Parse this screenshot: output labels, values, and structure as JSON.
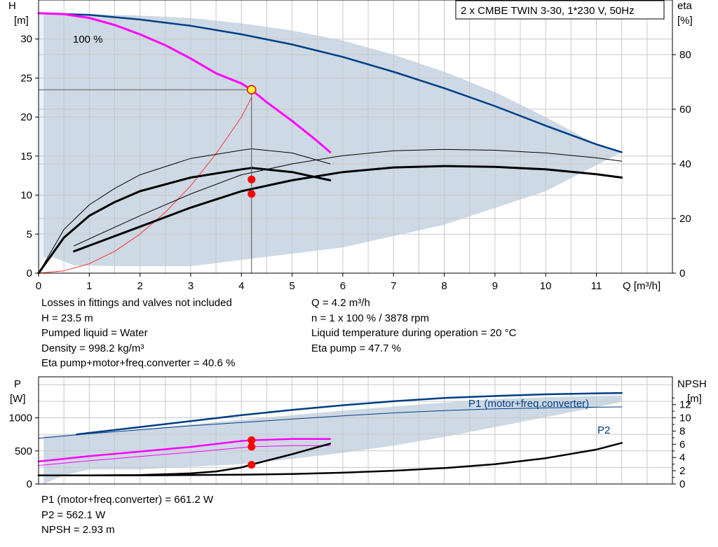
{
  "title": "2 x CMBE TWIN 3-30, 1*230 V, 50Hz",
  "chart_data": [
    {
      "type": "line",
      "name": "head-eta",
      "y_label": "H",
      "y_unit": "[m]",
      "y2_label": "eta",
      "y2_unit": "[%]",
      "x_label": "Q [m³/h]",
      "xlim": [
        0,
        12.5
      ],
      "ylim": [
        0,
        35
      ],
      "y2lim": [
        0,
        100
      ],
      "x_ticks": [
        "0",
        "1",
        "2",
        "3",
        "4",
        "5",
        "6",
        "7",
        "8",
        "9",
        "10",
        "11"
      ],
      "y_ticks": [
        "0",
        "5",
        "10",
        "15",
        "20",
        "25",
        "30"
      ],
      "y2_ticks": [
        "0",
        "20",
        "40",
        "60",
        "80"
      ],
      "grid": true,
      "curve_label": "100 %",
      "duty_point": {
        "q": 4.2,
        "h": 23.5,
        "eta_pump": 47.7,
        "eta_total": 40.6
      },
      "operating_area": [
        [
          0.1,
          2
        ],
        [
          0.3,
          2
        ],
        [
          0.7,
          1
        ],
        [
          1.5,
          0.9
        ],
        [
          3,
          0.9
        ],
        [
          4,
          1.7
        ],
        [
          6,
          3.3
        ],
        [
          8,
          6.2
        ],
        [
          10,
          10.5
        ],
        [
          11.5,
          15.5
        ],
        [
          11,
          16.5
        ],
        [
          10,
          20
        ],
        [
          9,
          23.2
        ],
        [
          8,
          25.8
        ],
        [
          7,
          28
        ],
        [
          6,
          29.8
        ],
        [
          5,
          31.1
        ],
        [
          4,
          32
        ],
        [
          3,
          32.7
        ],
        [
          2,
          33
        ],
        [
          1,
          33.2
        ],
        [
          0.4,
          33.3
        ],
        [
          0.1,
          33.3
        ]
      ],
      "series": [
        {
          "name": "Max curve",
          "color": "#003d84",
          "x": [
            0,
            1,
            2,
            3,
            4,
            5,
            6,
            7,
            8,
            9,
            10,
            11,
            11.5
          ],
          "y": [
            33.3,
            33.1,
            32.5,
            31.7,
            30.6,
            29.3,
            27.7,
            25.8,
            23.7,
            21.4,
            18.9,
            16.5,
            15.5
          ]
        },
        {
          "name": "100 %",
          "color": "#ff00ff",
          "x": [
            0,
            0.5,
            1,
            1.5,
            2,
            2.5,
            3,
            3.5,
            4,
            4.2,
            4.5,
            5,
            5.5,
            5.75
          ],
          "y": [
            33.3,
            33.2,
            32.7,
            31.8,
            30.6,
            29.2,
            27.5,
            25.6,
            24.3,
            23.5,
            21.9,
            19.5,
            16.9,
            15.5
          ]
        },
        {
          "name": "System curve",
          "color": "#ff3030",
          "x": [
            0,
            0.5,
            1,
            1.5,
            2,
            2.5,
            3,
            3.5,
            4,
            4.2
          ],
          "y": [
            0,
            0.3,
            1.2,
            2.8,
            5,
            7.8,
            11.2,
            15.3,
            20,
            22.5
          ]
        },
        {
          "name": "Eta pump (bold)",
          "color": "#000000",
          "axis": "eta",
          "x": [
            0,
            0.5,
            1,
            1.5,
            2,
            3,
            4,
            4.2,
            5,
            5.75
          ],
          "y": [
            0,
            13,
            21,
            26,
            30,
            35,
            38,
            38.5,
            37,
            34
          ]
        },
        {
          "name": "Eta pump (thin)",
          "color": "#000000",
          "axis": "eta",
          "x": [
            0,
            0.5,
            1,
            1.5,
            2,
            3,
            4,
            4.2,
            5,
            5.75
          ],
          "y": [
            0,
            16,
            25,
            31,
            36,
            42,
            45,
            45.5,
            44,
            40
          ]
        },
        {
          "name": "Eta total (bold)",
          "color": "#000000",
          "axis": "eta",
          "x": [
            0.7,
            2,
            3,
            4,
            5,
            6,
            7,
            8,
            9,
            10,
            11,
            11.5
          ],
          "y": [
            8,
            17,
            24,
            30,
            34,
            37,
            38.7,
            39.2,
            38.9,
            38,
            36.2,
            35
          ]
        },
        {
          "name": "Eta total (thin)",
          "color": "#000000",
          "axis": "eta",
          "x": [
            0.7,
            2,
            3,
            4,
            5,
            6,
            7,
            8,
            9,
            10,
            11,
            11.5
          ],
          "y": [
            10,
            21,
            29,
            36,
            40,
            43,
            44.8,
            45.3,
            45,
            44,
            42.2,
            41
          ]
        }
      ],
      "markers": [
        {
          "x": 4.2,
          "y": 34.3,
          "axis": "eta"
        },
        {
          "x": 4.2,
          "y": 29.0,
          "axis": "eta"
        }
      ]
    },
    {
      "type": "line",
      "name": "power-npsh",
      "y_label": "P",
      "y_unit": "[W]",
      "y2_label": "NPSH",
      "y2_unit": "[m]",
      "xlim": [
        0,
        12.5
      ],
      "ylim": [
        0,
        1620
      ],
      "y2lim": [
        0,
        16.2
      ],
      "y_ticks": [
        "0",
        "500",
        "1000"
      ],
      "y2_ticks": [
        "0",
        "2",
        "4",
        "6",
        "8",
        "10",
        "12"
      ],
      "grid": true,
      "area": [
        [
          0.1,
          0
        ],
        [
          0.5,
          130
        ],
        [
          1,
          220
        ],
        [
          2,
          220
        ],
        [
          3,
          260
        ],
        [
          4,
          300
        ],
        [
          5,
          380
        ],
        [
          6,
          470
        ],
        [
          7,
          580
        ],
        [
          8,
          710
        ],
        [
          9,
          860
        ],
        [
          10,
          1010
        ],
        [
          11,
          1160
        ],
        [
          11.5,
          1240
        ],
        [
          11.5,
          1340
        ],
        [
          11,
          1330
        ],
        [
          10,
          1310
        ],
        [
          9,
          1280
        ],
        [
          8,
          1230
        ],
        [
          7,
          1170
        ],
        [
          6,
          1110
        ],
        [
          5,
          1040
        ],
        [
          4,
          970
        ],
        [
          3,
          900
        ],
        [
          2,
          830
        ],
        [
          1,
          760
        ],
        [
          0.5,
          740
        ],
        [
          0.1,
          730
        ]
      ],
      "series": [
        {
          "name": "P1 (motor+freq.converter)",
          "color": "#003d84",
          "x": [
            0.75,
            2,
            3,
            4,
            5,
            6,
            7,
            8,
            9,
            10,
            11,
            11.5
          ],
          "y": [
            750,
            860,
            950,
            1040,
            1120,
            1190,
            1250,
            1300,
            1330,
            1355,
            1370,
            1375
          ]
        },
        {
          "name": "P2",
          "color": "#003d84",
          "x": [
            0,
            1,
            2,
            3,
            4,
            5,
            6,
            7,
            8,
            9,
            10,
            11,
            11.5
          ],
          "y": [
            690,
            760,
            820,
            880,
            930,
            980,
            1030,
            1075,
            1110,
            1135,
            1150,
            1160,
            1165
          ]
        },
        {
          "name": "P1 100 %",
          "color": "#ff00ff",
          "x": [
            0,
            1,
            2,
            3,
            4,
            4.2,
            5,
            5.75
          ],
          "y": [
            340,
            420,
            490,
            560,
            650,
            661,
            680,
            680
          ]
        },
        {
          "name": "P2 100 %",
          "color": "#ff00ff",
          "x": [
            0,
            1,
            2,
            3,
            4,
            4.2,
            5,
            5.75
          ],
          "y": [
            280,
            350,
            415,
            480,
            550,
            562,
            580,
            580
          ]
        },
        {
          "name": "NPSH (short)",
          "color": "#000000",
          "axis": "npsh",
          "x": [
            0,
            1,
            2,
            3,
            3.5,
            4,
            4.2,
            5,
            5.75
          ],
          "y": [
            1.3,
            1.3,
            1.35,
            1.6,
            1.9,
            2.5,
            2.93,
            4.5,
            6.1
          ]
        },
        {
          "name": "NPSH (long)",
          "color": "#000000",
          "axis": "npsh",
          "x": [
            0,
            1,
            2,
            3,
            4,
            5,
            6,
            7,
            8,
            9,
            10,
            11,
            11.5
          ],
          "y": [
            1.3,
            1.3,
            1.3,
            1.35,
            1.4,
            1.5,
            1.7,
            2,
            2.4,
            3,
            3.9,
            5.2,
            6.2
          ]
        }
      ],
      "markers": [
        {
          "x": 4.2,
          "y": 661.2
        },
        {
          "x": 4.2,
          "y": 562.1
        },
        {
          "x": 4.2,
          "y": 290
        }
      ]
    }
  ],
  "info": {
    "left": [
      "Losses in fittings and valves not included",
      "H = 23.5 m",
      "Pumped liquid = Water",
      "Density = 998.2 kg/m³",
      "Eta pump+motor+freq.converter = 40.6 %"
    ],
    "right": [
      "Q = 4.2 m³/h",
      "n = 1 x 100 % / 3878 rpm",
      "Liquid temperature during operation = 20 °C",
      "Eta pump = 47.7 %"
    ],
    "bottom": [
      "P1 (motor+freq.converter) = 661.2 W",
      "P2 = 562.1 W",
      "NPSH = 2.93 m"
    ]
  },
  "colors": {
    "area": "#cdd9e5",
    "area_left": "#e9f1f9",
    "grid": "#c8c8c8",
    "max_curve": "#003d84",
    "speed_curve": "#ff00ff",
    "system_curve": "#ff3030",
    "marker": "#ff0000",
    "duty_point_fill": "#ffff33"
  }
}
